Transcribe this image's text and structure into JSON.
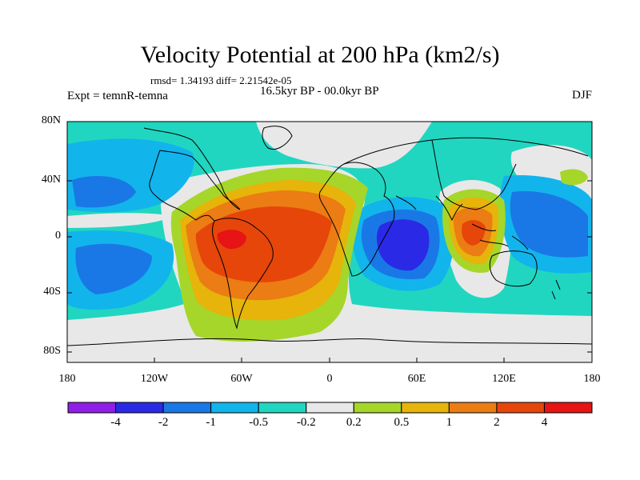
{
  "title": "Velocity Potential at 200 hPa (km2/s)",
  "stats": "rmsd= 1.34193 diff= 2.21542e-05",
  "experiment": "Expt = temnR-temna",
  "period": "16.5kyr BP - 00.0kyr BP",
  "season": "DJF",
  "lat_ticks": [
    "80N",
    "40N",
    "0",
    "40S",
    "80S"
  ],
  "lon_ticks": [
    "180",
    "120W",
    "60W",
    "0",
    "60E",
    "120E",
    "180"
  ],
  "colorbar": {
    "labels": [
      "-4",
      "-2",
      "-1",
      "-0.5",
      "-0.2",
      "0.2",
      "0.5",
      "1",
      "2",
      "4"
    ],
    "colors": [
      "#8f1fe6",
      "#2a2ae6",
      "#1a78e6",
      "#12b4ec",
      "#21d6c0",
      "#e8e8e8",
      "#a6d62a",
      "#e6b40a",
      "#ec7c14",
      "#e6460a",
      "#e61414"
    ]
  }
}
